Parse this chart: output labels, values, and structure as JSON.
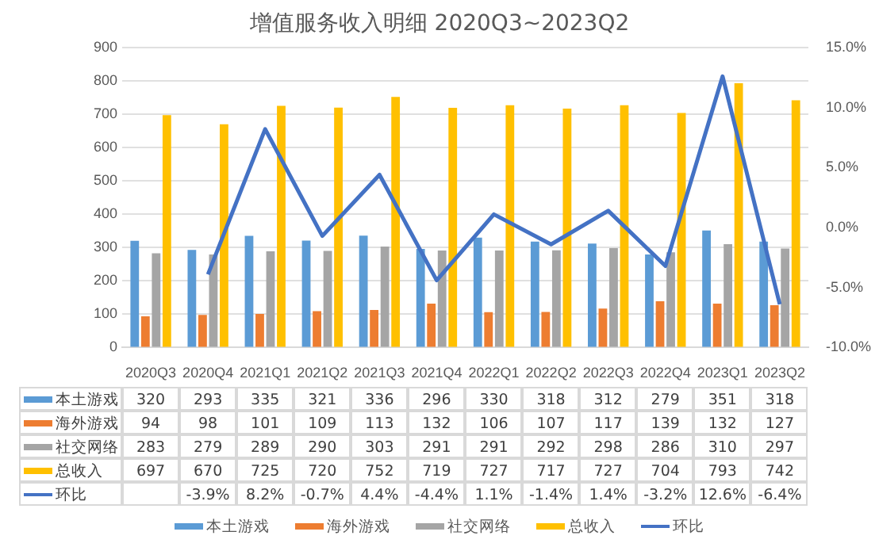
{
  "chart_data": {
    "type": "bar",
    "title": "增值服务收入明细 2020Q3~2023Q2",
    "categories": [
      "2020Q3",
      "2020Q4",
      "2021Q1",
      "2021Q2",
      "2021Q3",
      "2021Q4",
      "2022Q1",
      "2022Q2",
      "2022Q3",
      "2022Q4",
      "2023Q1",
      "2023Q2"
    ],
    "series": [
      {
        "name": "本土游戏",
        "color": "#5b9bd5",
        "values": [
          320,
          293,
          335,
          321,
          336,
          296,
          330,
          318,
          312,
          279,
          351,
          318
        ]
      },
      {
        "name": "海外游戏",
        "color": "#ed7d31",
        "values": [
          94,
          98,
          101,
          109,
          113,
          132,
          106,
          107,
          117,
          139,
          132,
          127
        ]
      },
      {
        "name": "社交网络",
        "color": "#a5a5a5",
        "values": [
          283,
          279,
          289,
          290,
          303,
          291,
          291,
          292,
          298,
          286,
          310,
          297
        ]
      },
      {
        "name": "总收入",
        "color": "#ffc000",
        "values": [
          697,
          670,
          725,
          720,
          752,
          719,
          727,
          717,
          727,
          704,
          793,
          742
        ]
      },
      {
        "name": "环比",
        "color": "#4472c4",
        "type": "line",
        "axis": "y2",
        "values": [
          null,
          -3.9,
          8.2,
          -0.7,
          4.4,
          -4.4,
          1.1,
          -1.4,
          1.4,
          -3.2,
          12.6,
          -6.4
        ],
        "value_labels": [
          null,
          "-3.9%",
          "8.2%",
          "-0.7%",
          "4.4%",
          "-4.4%",
          "1.1%",
          "-1.4%",
          "1.4%",
          "-3.2%",
          "12.6%",
          "-6.4%"
        ]
      }
    ],
    "ylim": [
      0,
      900
    ],
    "yticks": [
      0,
      100,
      200,
      300,
      400,
      500,
      600,
      700,
      800,
      900
    ],
    "y2lim": [
      -10,
      15
    ],
    "y2ticks": [
      {
        "value": -10,
        "label": "-10.0%"
      },
      {
        "value": -5,
        "label": "-5.0%"
      },
      {
        "value": 0,
        "label": "0.0%"
      },
      {
        "value": 5,
        "label": "5.0%"
      },
      {
        "value": 10,
        "label": "10.0%"
      },
      {
        "value": 15,
        "label": "15.0%"
      }
    ],
    "grid": "y",
    "legend": "bottom",
    "data_labels": true
  }
}
